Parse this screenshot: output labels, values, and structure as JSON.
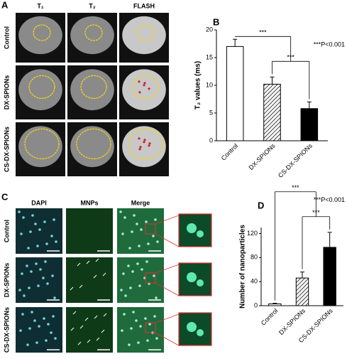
{
  "panel_a": {
    "label": "A",
    "columns": [
      "T₁",
      "T₂",
      "FLASH"
    ],
    "rows": [
      "Control",
      "DX-SPIONs",
      "CS-DX-SPIONs"
    ]
  },
  "panel_c": {
    "label": "C",
    "columns": [
      "DAPI",
      "MNPs",
      "Merge"
    ],
    "rows": [
      "Control",
      "DX-SPIONs",
      "CS-DX-SPIONs"
    ]
  },
  "chart_data": [
    {
      "type": "bar",
      "panel_label": "B",
      "ylabel": "T₂ values (ms)",
      "annotation": "***P<0.001",
      "categories": [
        "Control",
        "DX-SPIONs",
        "CS-DX-SPIONs"
      ],
      "values": [
        17,
        10.2,
        5.8
      ],
      "errors": [
        1.3,
        1.3,
        1.2
      ],
      "fills": [
        "white",
        "hatched",
        "black"
      ],
      "significance": [
        "***",
        "***"
      ],
      "ylim": [
        0,
        20
      ],
      "yticks": [
        0,
        5,
        10,
        15,
        20
      ]
    },
    {
      "type": "bar",
      "panel_label": "D",
      "ylabel": "Number of nanoparticles",
      "annotation": "***P<0.001",
      "categories": [
        "Control",
        "DX-SPIONs",
        "CS-DX-SPIONs"
      ],
      "values": [
        3,
        46,
        97
      ],
      "errors": [
        1,
        10,
        25
      ],
      "fills": [
        "white",
        "hatched",
        "black"
      ],
      "significance": [
        "***",
        "***"
      ],
      "ylim": [
        0,
        130
      ],
      "yticks": [
        0,
        40,
        80,
        120
      ]
    }
  ]
}
